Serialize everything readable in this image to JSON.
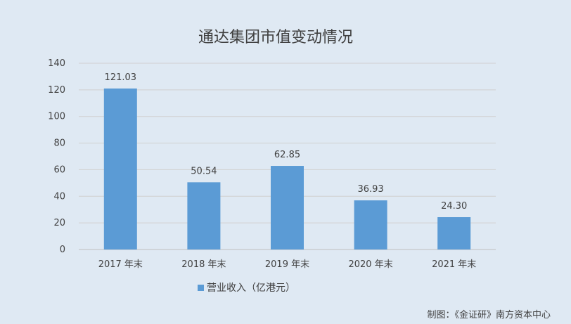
{
  "chart_data": {
    "type": "bar",
    "title": "通达集团市值变动情况",
    "categories": [
      "2017 年末",
      "2018 年末",
      "2019 年末",
      "2020 年末",
      "2021 年末"
    ],
    "series": [
      {
        "name": "营业收入（亿港元）",
        "values": [
          121.03,
          50.54,
          62.85,
          36.93,
          24.3
        ]
      }
    ],
    "data_labels": [
      "121.03",
      "50.54",
      "62.85",
      "36.93",
      "24.30"
    ],
    "ylim": [
      0,
      140
    ],
    "yticks": [
      0,
      20,
      40,
      60,
      80,
      100,
      120,
      140
    ],
    "grid": true,
    "legend_position": "bottom",
    "colors": {
      "bar": "#5b9bd5",
      "background": "#dfe9f3",
      "grid": "#d0d0d0",
      "text": "#404040"
    }
  },
  "credit": "制图：《金证研》南方资本中心"
}
